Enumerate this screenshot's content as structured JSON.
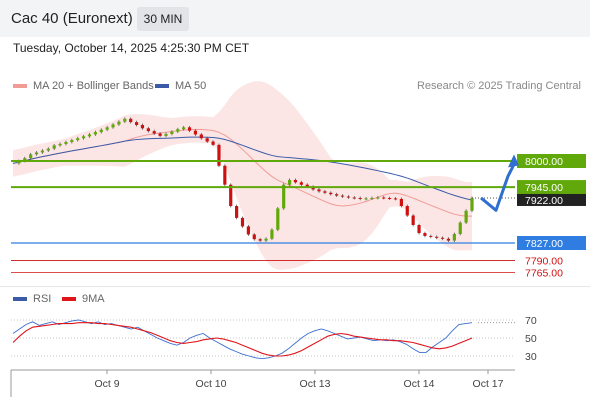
{
  "header": {
    "title": "Cac 40 (Euronext)",
    "timeframe": "30 MIN",
    "datetime": "Tuesday, October 14, 2025 4:25:30 PM CET"
  },
  "legend": {
    "bollinger": "MA 20 + Bollinger Bands",
    "ma50": "MA 50",
    "credit": "Research © 2025 Trading Central"
  },
  "rsi_legend": {
    "rsi": "RSI",
    "ma9": "9MA"
  },
  "colors": {
    "bullish": "#61a80a",
    "bearish": "#cf1010",
    "support": "#2f7de1",
    "bollinger": "#f19b96",
    "ma50": "#3b5ba8",
    "forecast": "#2f6fcf"
  },
  "chart_data": [
    {
      "type": "candlestick",
      "title": "Cac 40 (Euronext)",
      "interval": "30 MIN",
      "x_ticks": [
        "Oct 9",
        "Oct 10",
        "Oct 13",
        "Oct 14",
        "Oct 17"
      ],
      "price_labels": {
        "current": "7922.00"
      },
      "levels": [
        {
          "label": "8000.00",
          "value": 8000,
          "kind": "resistance",
          "color": "#61a80a"
        },
        {
          "label": "7945.00",
          "value": 7945,
          "kind": "resistance",
          "color": "#61a80a"
        },
        {
          "label": "7827.00",
          "value": 7827,
          "kind": "support",
          "color": "#2f7de1"
        },
        {
          "label": "7790.00",
          "value": 7790,
          "kind": "support",
          "color": "#cf1010"
        },
        {
          "label": "7765.00",
          "value": 7765,
          "kind": "support",
          "color": "#cf1010"
        }
      ],
      "close_series": [
        7995,
        8000,
        8006,
        8014,
        8018,
        8022,
        8026,
        8033,
        8036,
        8040,
        8044,
        8048,
        8052,
        8056,
        8061,
        8066,
        8071,
        8077,
        8083,
        8089,
        8082,
        8076,
        8069,
        8063,
        8058,
        8053,
        8057,
        8062,
        8067,
        8071,
        8064,
        8056,
        8048,
        8041,
        8034,
        7990,
        7950,
        7905,
        7880,
        7862,
        7845,
        7835,
        7832,
        7836,
        7855,
        7900,
        7950,
        7960,
        7955,
        7950,
        7946,
        7940,
        7936,
        7933,
        7930,
        7927,
        7925,
        7923,
        7922,
        7920,
        7921,
        7922,
        7923,
        7922,
        7921,
        7920,
        7905,
        7885,
        7865,
        7848,
        7842,
        7840,
        7838,
        7836,
        7832,
        7846,
        7870,
        7895,
        7922
      ],
      "forecast": [
        7922,
        7896,
        7968,
        7997
      ]
    },
    {
      "type": "line",
      "title": "RSI",
      "y_ticks": [
        70,
        50,
        30
      ],
      "ylim": [
        20,
        80
      ],
      "series": [
        {
          "name": "RSI",
          "values": [
            55,
            60,
            65,
            68,
            64,
            66,
            68,
            65,
            67,
            69,
            70,
            68,
            66,
            68,
            65,
            66,
            64,
            62,
            60,
            62,
            58,
            54,
            50,
            47,
            44,
            42,
            45,
            50,
            53,
            55,
            50,
            46,
            42,
            38,
            35,
            32,
            30,
            28,
            27,
            28,
            30,
            33,
            38,
            44,
            50,
            55,
            58,
            60,
            58,
            55,
            52,
            49,
            50,
            51,
            49,
            47,
            48,
            47,
            48,
            46,
            43,
            38,
            34,
            34,
            40,
            45,
            50,
            58,
            65,
            66,
            67
          ]
        },
        {
          "name": "9MA",
          "values": [
            45,
            52,
            58,
            62,
            63,
            64,
            65,
            66,
            66,
            66,
            67,
            67,
            67,
            66,
            66,
            65,
            64,
            63,
            62,
            60,
            58,
            56,
            53,
            50,
            47,
            45,
            44,
            45,
            46,
            48,
            49,
            50,
            49,
            47,
            45,
            42,
            39,
            36,
            33,
            31,
            30,
            30,
            31,
            33,
            36,
            40,
            44,
            48,
            52,
            54,
            55,
            54,
            52,
            51,
            50,
            49,
            48,
            48,
            47,
            47,
            46,
            45,
            43,
            41,
            39,
            38,
            39,
            41,
            44,
            47,
            50
          ]
        }
      ]
    }
  ]
}
